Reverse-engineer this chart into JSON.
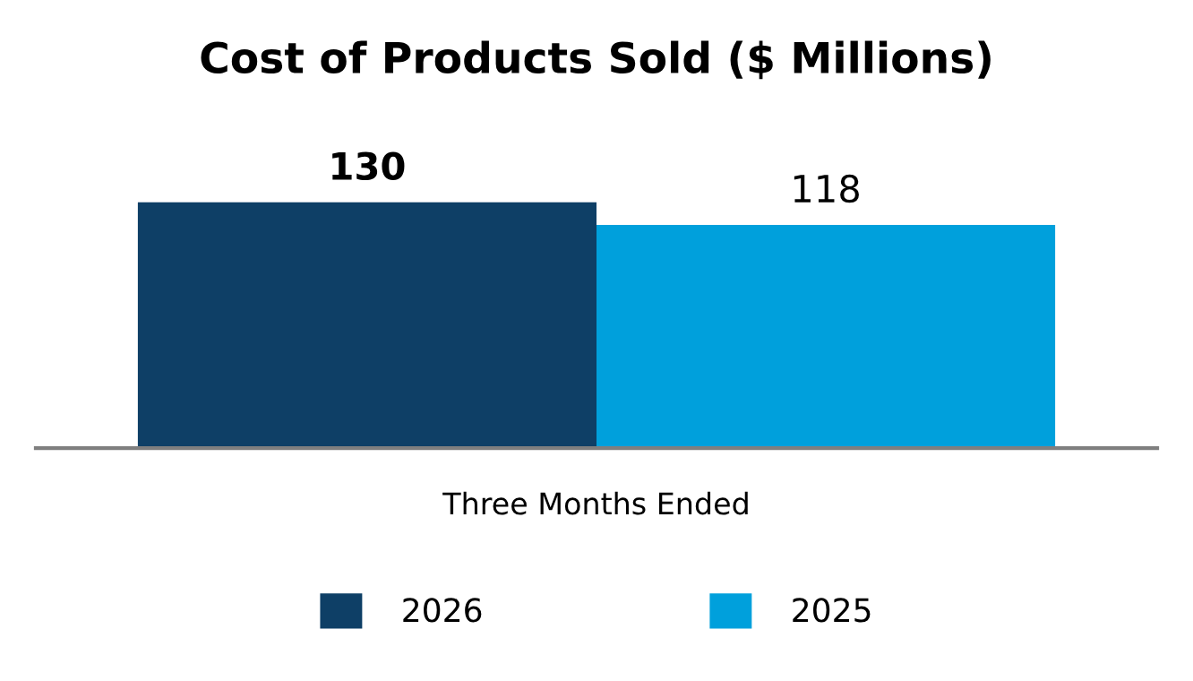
{
  "chart_data": {
    "type": "bar",
    "title": "Cost of Products Sold ($ Millions)",
    "xlabel": "Three Months Ended",
    "categories": [
      null
    ],
    "series": [
      {
        "name": "2026",
        "color": "#0e3f66",
        "values": [
          130
        ]
      },
      {
        "name": "2025",
        "color": "#00a0dc",
        "values": [
          118
        ]
      }
    ],
    "data_labels": true,
    "legend": "bottom",
    "grid": false
  }
}
